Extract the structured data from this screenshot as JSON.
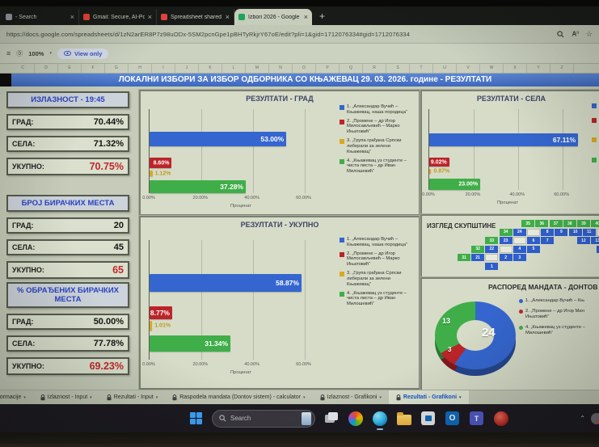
{
  "browser": {
    "tabs": [
      {
        "label": "- Search",
        "favicon": "#9aa0a6",
        "active": false
      },
      {
        "label": "Gmail: Secure, AI-Powered Email |",
        "favicon": "#ea4335",
        "active": false
      },
      {
        "label": "Spreadsheet shared with you: \"Izl",
        "favicon": "#e8453c",
        "active": false
      },
      {
        "label": "Izbori 2026 - Google Sheets",
        "favicon": "#1da35a",
        "active": true
      }
    ],
    "new_tab_label": "+",
    "url": "https://docs.google.com/spreadsheets/d/1zN2arER8P7z98uODx-5SM2pcnGpe1pBHTyRkjrY67oE/edit?pli=1&gid=1712076334#gid=1712076334",
    "zoom_level": "100%",
    "view_only_label": "View only"
  },
  "banner": {
    "title": "ЛОКАЛНИ ИЗБОРИ ЗА ИЗБОР ОДБОРНИКА СО КЊАЖЕВАЦ  29. 03. 2026. године - РЕЗУЛТАТИ"
  },
  "stats": {
    "groups": [
      {
        "header": "ИЗЛАЗНОСТ - 19:45",
        "rows": [
          {
            "label": "ГРАД:",
            "value": "70.44%",
            "red": false
          },
          {
            "label": "СЕЛА:",
            "value": "71.32%",
            "red": false
          },
          {
            "label": "УКУПНО:",
            "value": "70.75%",
            "red": true
          }
        ]
      },
      {
        "header": "БРОЈ БИРАЧКИХ МЕСТА",
        "rows": [
          {
            "label": "ГРАД:",
            "value": "20",
            "red": false
          },
          {
            "label": "СЕЛА:",
            "value": "45",
            "red": false
          },
          {
            "label": "УКУПНО:",
            "value": "65",
            "red": true
          }
        ]
      },
      {
        "header": "% ОБРАЂЕНИХ БИРАЧКИХ МЕСТА",
        "rows": [
          {
            "label": "ГРАД:",
            "value": "50.00%",
            "red": false
          },
          {
            "label": "СЕЛА:",
            "value": "77.78%",
            "red": false
          },
          {
            "label": "УКУПНО:",
            "value": "69.23%",
            "red": true
          }
        ]
      }
    ]
  },
  "parties": [
    "1. „Александар Вучић – Књажевац, наша породица“",
    "2. „Промене – др Игор Милосављевић – Марко Ињатовић“",
    "3. „Група грађана Српски либерали за зелени Књажевац“",
    "4. „Књажевац уз студенте – чиста листа – др Иван Милошевић“"
  ],
  "party_colors": [
    "#3566cf",
    "#bb2429",
    "#d9a824",
    "#3fae49"
  ],
  "chart_data": [
    {
      "id": "grad",
      "type": "bar",
      "orientation": "horizontal",
      "title": "РЕЗУЛТАТИ - ГРАД",
      "categories": [
        "Александар Вучић – Књажевац, наша породица",
        "Промене – др Игор Милосављевић – Марко Ињатовић",
        "Група грађана Српски либерали за зелени Књажевац",
        "Књажевац уз студенте – чиста листа – др Иван Милошевић"
      ],
      "values": [
        53.0,
        8.6,
        1.12,
        37.28
      ],
      "labels": [
        "53.00%",
        "8.60%",
        "1.12%",
        "37.28%"
      ],
      "xlabel": "Проценат",
      "xticks": [
        "0.00%",
        "20.00%",
        "40.00%",
        "60.00%"
      ],
      "xtick_values": [
        0,
        20,
        40,
        60
      ],
      "xlim": [
        0,
        71.4
      ],
      "grid": true,
      "legend_position": "right"
    },
    {
      "id": "sela",
      "type": "bar",
      "orientation": "horizontal",
      "title": "РЕЗУЛТАТИ - СЕЛА",
      "categories": [
        "Александар Вучић – Књажевац, наша породица",
        "Промене – др Игор Милосављевић – Марко Ињатовић",
        "Група грађана Српски либерали за зелени Књажевац",
        "Књажевац уз студенте – чиста листа – др Иван Милошевић"
      ],
      "values": [
        67.11,
        9.02,
        0.87,
        23.0
      ],
      "labels": [
        "67.11%",
        "9.02%",
        "0.87%",
        "23.00%"
      ],
      "xlabel": "Проценат",
      "xticks": [
        "0.00%",
        "20.00%",
        "40.00%",
        "60.00%"
      ],
      "xtick_values": [
        0,
        20,
        40,
        60
      ],
      "xlim": [
        0,
        71.4
      ],
      "grid": true,
      "legend_position": "right-clipped"
    },
    {
      "id": "ukupno",
      "type": "bar",
      "orientation": "horizontal",
      "title": "РЕЗУЛТАТИ - УКУПНО",
      "categories": [
        "Александар Вучић – Књажевац, наша породица",
        "Промене – др Игор Милосављевић – Марко Ињатовић",
        "Група грађана Српски либерали за зелени Књажевац",
        "Књажевац уз студенте – чиста листа – др Иван Милошевић"
      ],
      "values": [
        58.87,
        8.77,
        1.01,
        31.34
      ],
      "labels": [
        "58.87%",
        "8.77%",
        "1.01%",
        "31.34%"
      ],
      "xlabel": "Проценат",
      "xticks": [
        "0.00%",
        "20.00%",
        "40.00%",
        "60.00%"
      ],
      "xtick_values": [
        0,
        20,
        40,
        60
      ],
      "xlim": [
        0,
        71.4
      ],
      "grid": true,
      "legend_position": "right"
    },
    {
      "id": "mandati",
      "type": "donut",
      "title": "РАСПОРЕД МАНДАТА - ДОНТОВ С",
      "values": [
        24,
        3,
        13
      ],
      "labels": [
        "24",
        "3",
        "13"
      ],
      "total_seats": 40,
      "colors": [
        "#3566cf",
        "#bb2429",
        "#3fae49"
      ],
      "legend": [
        "1. „Александар Вучић – Књ",
        "2. „Промене – др Игор Мил\nИњатовић“",
        "4. „Књажевац уз студенте –\nМилошевић“"
      ]
    }
  ],
  "assembly": {
    "title": "ИЗГЛЕД СКУПШТИНЕ",
    "seats": [
      {
        "n": "35",
        "c": "g",
        "col": 4.6,
        "row": 0
      },
      {
        "n": "36",
        "c": "g",
        "col": 5.6,
        "row": 0
      },
      {
        "n": "37",
        "c": "g",
        "col": 6.6,
        "row": 0
      },
      {
        "n": "38",
        "c": "g",
        "col": 7.6,
        "row": 0
      },
      {
        "n": "39",
        "c": "g",
        "col": 8.6,
        "row": 0
      },
      {
        "n": "40",
        "c": "g",
        "col": 9.6,
        "row": 0
      },
      {
        "n": "34",
        "c": "g",
        "col": 3,
        "row": 1
      },
      {
        "n": "24",
        "c": "b",
        "col": 4,
        "row": 1
      },
      {
        "n": "",
        "c": "w",
        "col": 5,
        "row": 1
      },
      {
        "n": "8",
        "c": "b",
        "col": 6,
        "row": 1
      },
      {
        "n": "9",
        "c": "b",
        "col": 7,
        "row": 1
      },
      {
        "n": "10",
        "c": "b",
        "col": 8,
        "row": 1
      },
      {
        "n": "11",
        "c": "b",
        "col": 9,
        "row": 1
      },
      {
        "n": "",
        "c": "w",
        "col": 10,
        "row": 1
      },
      {
        "n": "33",
        "c": "g",
        "col": 2,
        "row": 2
      },
      {
        "n": "23",
        "c": "b",
        "col": 3,
        "row": 2
      },
      {
        "n": "",
        "c": "w",
        "col": 4,
        "row": 2
      },
      {
        "n": "6",
        "c": "b",
        "col": 5,
        "row": 2
      },
      {
        "n": "7",
        "c": "b",
        "col": 6,
        "row": 2
      },
      {
        "n": "12",
        "c": "b",
        "col": 8.6,
        "row": 2
      },
      {
        "n": "13",
        "c": "b",
        "col": 9.6,
        "row": 2
      },
      {
        "n": "32",
        "c": "g",
        "col": 1,
        "row": 3
      },
      {
        "n": "22",
        "c": "b",
        "col": 2,
        "row": 3
      },
      {
        "n": "",
        "c": "w",
        "col": 3,
        "row": 3
      },
      {
        "n": "4",
        "c": "b",
        "col": 4,
        "row": 3
      },
      {
        "n": "5",
        "c": "b",
        "col": 5,
        "row": 3
      },
      {
        "n": "14",
        "c": "b",
        "col": 10,
        "row": 3
      },
      {
        "n": "31",
        "c": "g",
        "col": 0,
        "row": 4
      },
      {
        "n": "21",
        "c": "b",
        "col": 1,
        "row": 4
      },
      {
        "n": "",
        "c": "w",
        "col": 2,
        "row": 4
      },
      {
        "n": "2",
        "c": "b",
        "col": 3,
        "row": 4
      },
      {
        "n": "3",
        "c": "b",
        "col": 4,
        "row": 4
      },
      {
        "n": "1",
        "c": "b",
        "col": 2,
        "row": 5
      }
    ]
  },
  "sheet_tabs": [
    {
      "label": "Informacije",
      "active": false
    },
    {
      "label": "Izlaznost - Input",
      "active": false
    },
    {
      "label": "Rezultati - Input",
      "active": false
    },
    {
      "label": "Raspodela mandata (Dontov sistem) - calculator",
      "active": false
    },
    {
      "label": "Izlaznost - Grafikoni",
      "active": false
    },
    {
      "label": "Rezultati - Grafikoni",
      "active": true
    }
  ],
  "taskbar": {
    "search_label": "Search"
  }
}
